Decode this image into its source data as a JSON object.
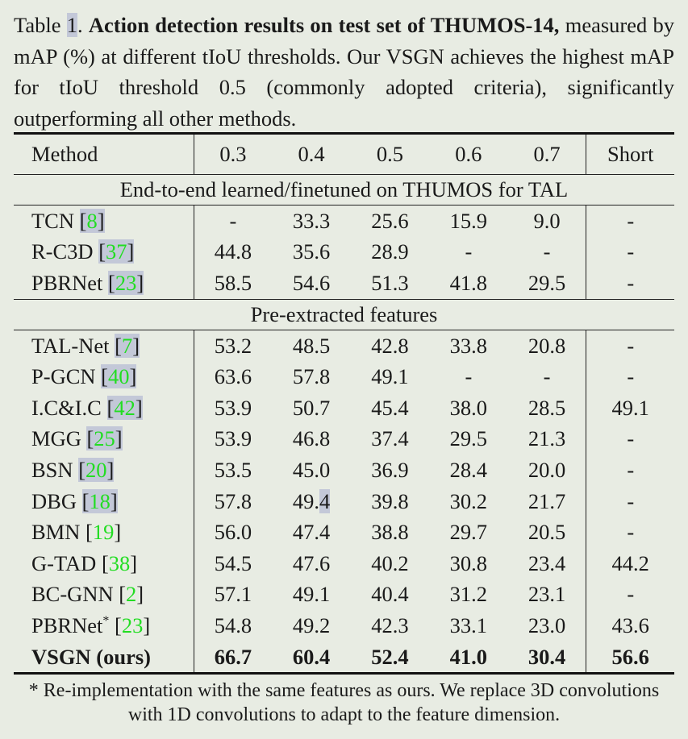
{
  "caption": {
    "label": "Table ",
    "number": "1",
    "sep": ". ",
    "bold": "Action detection results on test set of THUMOS-14,",
    "rest": " measured by mAP (%) at different tIoU thresholds. Our VSGN achieves the highest mAP for tIoU threshold 0.5 (commonly adopted criteria), significantly outperforming all other methods."
  },
  "table": {
    "headers": [
      "Method",
      "0.3",
      "0.4",
      "0.5",
      "0.6",
      "0.7",
      "Short"
    ],
    "sections": [
      {
        "title": "End-to-end learned/finetuned on THUMOS for TAL",
        "rows": [
          {
            "method": "TCN",
            "cite": "8",
            "highlight": true,
            "values": [
              "-",
              "33.3",
              "25.6",
              "15.9",
              "9.0",
              "-"
            ]
          },
          {
            "method": "R-C3D",
            "cite": "37",
            "highlight": true,
            "values": [
              "44.8",
              "35.6",
              "28.9",
              "-",
              "-",
              "-"
            ]
          },
          {
            "method": "PBRNet",
            "cite": "23",
            "highlight": true,
            "values": [
              "58.5",
              "54.6",
              "51.3",
              "41.8",
              "29.5",
              "-"
            ]
          }
        ]
      },
      {
        "title": "Pre-extracted features",
        "rows": [
          {
            "method": "TAL-Net",
            "cite": "7",
            "highlight": true,
            "values": [
              "53.2",
              "48.5",
              "42.8",
              "33.8",
              "20.8",
              "-"
            ]
          },
          {
            "method": "P-GCN",
            "cite": "40",
            "highlight": true,
            "values": [
              "63.6",
              "57.8",
              "49.1",
              "-",
              "-",
              "-"
            ]
          },
          {
            "method": "I.C&I.C",
            "cite": "42",
            "highlight": true,
            "values": [
              "53.9",
              "50.7",
              "45.4",
              "38.0",
              "28.5",
              "49.1"
            ]
          },
          {
            "method": "MGG",
            "cite": "25",
            "highlight": true,
            "values": [
              "53.9",
              "46.8",
              "37.4",
              "29.5",
              "21.3",
              "-"
            ]
          },
          {
            "method": "BSN",
            "cite": "20",
            "highlight": true,
            "values": [
              "53.5",
              "45.0",
              "36.9",
              "28.4",
              "20.0",
              "-"
            ]
          },
          {
            "method": "DBG",
            "cite": "18",
            "highlight": true,
            "values": [
              "57.8",
              "49.4",
              "39.8",
              "30.2",
              "21.7",
              "-"
            ],
            "highlight_last_char_col": 1
          },
          {
            "method": "BMN",
            "cite": "19",
            "highlight": false,
            "values": [
              "56.0",
              "47.4",
              "38.8",
              "29.7",
              "20.5",
              "-"
            ]
          },
          {
            "method": "G-TAD",
            "cite": "38",
            "highlight": false,
            "values": [
              "54.5",
              "47.6",
              "40.2",
              "30.8",
              "23.4",
              "44.2"
            ]
          },
          {
            "method": "BC-GNN",
            "cite": "2",
            "highlight": false,
            "values": [
              "57.1",
              "49.1",
              "40.4",
              "31.2",
              "23.1",
              "-"
            ]
          },
          {
            "method": "PBRNet",
            "star": "*",
            "cite": "23",
            "highlight": false,
            "values": [
              "54.8",
              "49.2",
              "42.3",
              "33.1",
              "23.0",
              "43.6"
            ]
          },
          {
            "method": "VSGN (ours)",
            "bold": true,
            "values": [
              "66.7",
              "60.4",
              "52.4",
              "41.0",
              "30.4",
              "56.6"
            ]
          }
        ]
      }
    ]
  },
  "footnote": "* Re-implementation with the same features as ours. We replace 3D convolutions with 1D convolutions to adapt to the feature dimension.",
  "colors": {
    "background": "#e8ece3",
    "citation": "#22dd22",
    "link_highlight": "#c3c8d8"
  }
}
